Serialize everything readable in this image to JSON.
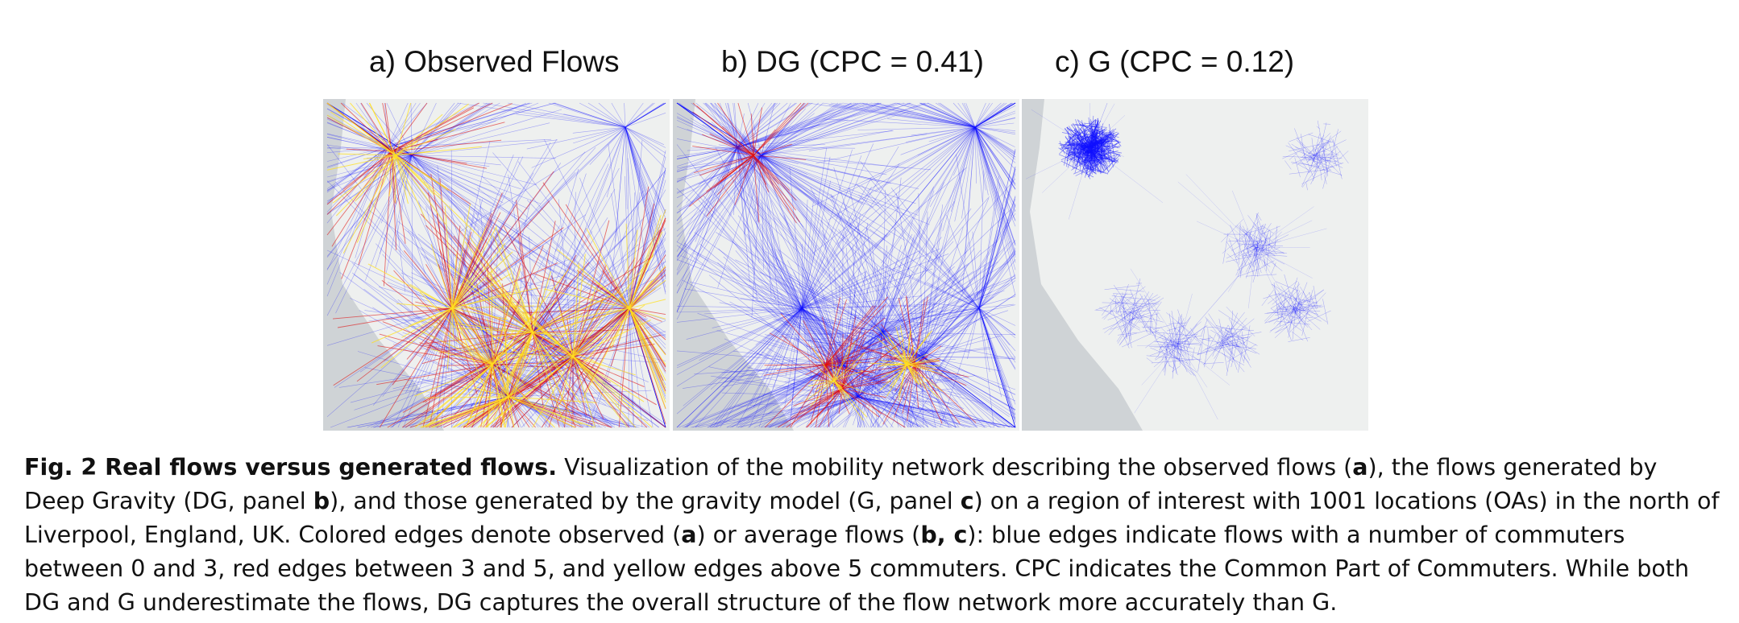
{
  "figure": {
    "panels": [
      {
        "title": "a) Observed Flows"
      },
      {
        "title": "b) DG (CPC = 0.41)"
      },
      {
        "title": "c) G (CPC = 0.12)"
      }
    ],
    "colors": {
      "blue_edges": "#1010ff",
      "red_edges": "#e01010",
      "yellow_edges": "#ffe020",
      "land": "#eef0ef",
      "water": "#cfd3d6"
    },
    "caption": {
      "label": "Fig. 2 Real flows versus generated flows.",
      "s1": " Visualization of the mobility network describing the observed flows (",
      "b1": "a",
      "s2": "), the flows generated by Deep Gravity (DG, panel ",
      "b2": "b",
      "s3": "), and those generated by the gravity model (G, panel ",
      "b3": "c",
      "s4": ") on a region of interest with 1001 locations (OAs) in the north of Liverpool, England, UK. Colored edges denote observed (",
      "b4": "a",
      "s5": ") or average flows (",
      "b5": "b, c",
      "s6": "): blue edges indicate flows with a number of commuters between 0 and 3, red edges between 3 and 5, and yellow edges above 5 commuters. CPC indicates the Common Part of Commuters. While both DG and G underestimate the flows, DG captures the overall structure of the flow network more accurately than G."
    }
  }
}
